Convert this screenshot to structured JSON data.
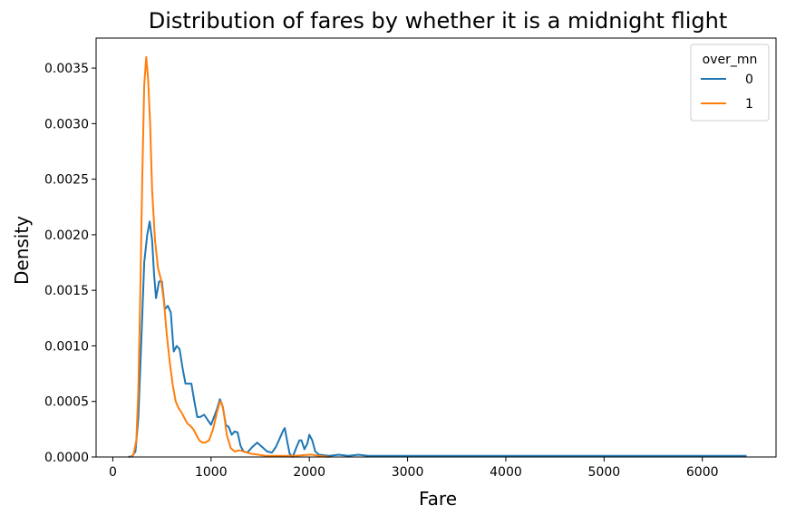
{
  "chart_data": {
    "type": "line",
    "title": "Distribution of fares by whether it is a midnight flight",
    "xlabel": "Fare",
    "ylabel": "Density",
    "xlim": [
      -170,
      6750
    ],
    "ylim": [
      0,
      0.00377
    ],
    "x_ticks": [
      0,
      1000,
      2000,
      3000,
      4000,
      5000,
      6000
    ],
    "x_tick_labels": [
      "0",
      "1000",
      "2000",
      "3000",
      "4000",
      "5000",
      "6000"
    ],
    "y_ticks": [
      0,
      0.0005,
      0.001,
      0.0015,
      0.002,
      0.0025,
      0.003,
      0.0035
    ],
    "y_tick_labels": [
      "0.0000",
      "0.0005",
      "0.0010",
      "0.0015",
      "0.0020",
      "0.0025",
      "0.0030",
      "0.0035"
    ],
    "grid": false,
    "legend": {
      "title": "over_mn",
      "position": "top-right"
    },
    "series": [
      {
        "name": "0",
        "color": "#1f77b4",
        "points": [
          [
            160,
            0.0
          ],
          [
            200,
            1e-05
          ],
          [
            230,
            5e-05
          ],
          [
            260,
            0.00035
          ],
          [
            290,
            0.00105
          ],
          [
            320,
            0.00175
          ],
          [
            350,
            0.002
          ],
          [
            375,
            0.00212
          ],
          [
            400,
            0.00195
          ],
          [
            420,
            0.00165
          ],
          [
            440,
            0.00143
          ],
          [
            470,
            0.00158
          ],
          [
            500,
            0.00158
          ],
          [
            530,
            0.00133
          ],
          [
            560,
            0.00136
          ],
          [
            590,
            0.0013
          ],
          [
            620,
            0.00095
          ],
          [
            650,
            0.001
          ],
          [
            680,
            0.00097
          ],
          [
            710,
            0.0008
          ],
          [
            740,
            0.00066
          ],
          [
            770,
            0.00066
          ],
          [
            800,
            0.00066
          ],
          [
            830,
            0.0005
          ],
          [
            860,
            0.00036
          ],
          [
            890,
            0.00036
          ],
          [
            930,
            0.00038
          ],
          [
            960,
            0.00034
          ],
          [
            1000,
            0.00029
          ],
          [
            1030,
            0.00036
          ],
          [
            1060,
            0.00043
          ],
          [
            1090,
            0.00052
          ],
          [
            1120,
            0.00045
          ],
          [
            1150,
            0.00029
          ],
          [
            1180,
            0.00027
          ],
          [
            1210,
            0.0002
          ],
          [
            1240,
            0.00023
          ],
          [
            1270,
            0.00022
          ],
          [
            1300,
            0.0001
          ],
          [
            1330,
            5e-05
          ],
          [
            1370,
            4e-05
          ],
          [
            1420,
            9e-05
          ],
          [
            1470,
            0.00013
          ],
          [
            1520,
            9e-05
          ],
          [
            1570,
            5e-05
          ],
          [
            1620,
            4e-05
          ],
          [
            1660,
            9e-05
          ],
          [
            1700,
            0.00017
          ],
          [
            1730,
            0.00023
          ],
          [
            1750,
            0.00026
          ],
          [
            1780,
            0.00012
          ],
          [
            1800,
            3e-05
          ],
          [
            1830,
            0.0
          ],
          [
            1870,
            9e-05
          ],
          [
            1900,
            0.00015
          ],
          [
            1920,
            0.00015
          ],
          [
            1950,
            7e-05
          ],
          [
            1980,
            0.00012
          ],
          [
            2000,
            0.0002
          ],
          [
            2030,
            0.00015
          ],
          [
            2060,
            5e-05
          ],
          [
            2100,
            2e-05
          ],
          [
            2200,
            1e-05
          ],
          [
            2300,
            2e-05
          ],
          [
            2400,
            1e-05
          ],
          [
            2500,
            2e-05
          ],
          [
            2600,
            1e-05
          ],
          [
            2700,
            1e-05
          ],
          [
            2800,
            1e-05
          ],
          [
            3000,
            1e-05
          ],
          [
            3300,
            1e-05
          ],
          [
            3500,
            1e-05
          ],
          [
            4000,
            1e-05
          ],
          [
            4300,
            1e-05
          ],
          [
            5000,
            1e-05
          ],
          [
            5500,
            1e-05
          ],
          [
            6000,
            1e-05
          ],
          [
            6450,
            1e-05
          ]
        ]
      },
      {
        "name": "1",
        "color": "#ff7f0e",
        "points": [
          [
            180,
            0.0
          ],
          [
            210,
            2e-05
          ],
          [
            240,
            0.00015
          ],
          [
            260,
            0.0006
          ],
          [
            280,
            0.0015
          ],
          [
            300,
            0.0025
          ],
          [
            320,
            0.00335
          ],
          [
            340,
            0.0036
          ],
          [
            360,
            0.0034
          ],
          [
            380,
            0.003
          ],
          [
            400,
            0.0024
          ],
          [
            430,
            0.00195
          ],
          [
            460,
            0.0017
          ],
          [
            490,
            0.0016
          ],
          [
            520,
            0.0014
          ],
          [
            550,
            0.0011
          ],
          [
            580,
            0.00085
          ],
          [
            610,
            0.00065
          ],
          [
            640,
            0.0005
          ],
          [
            670,
            0.00044
          ],
          [
            700,
            0.0004
          ],
          [
            730,
            0.00035
          ],
          [
            760,
            0.0003
          ],
          [
            790,
            0.00028
          ],
          [
            820,
            0.00025
          ],
          [
            850,
            0.0002
          ],
          [
            880,
            0.00015
          ],
          [
            910,
            0.00013
          ],
          [
            940,
            0.00013
          ],
          [
            980,
            0.00015
          ],
          [
            1020,
            0.00025
          ],
          [
            1060,
            0.0004
          ],
          [
            1090,
            0.0005
          ],
          [
            1110,
            0.00048
          ],
          [
            1130,
            0.0004
          ],
          [
            1160,
            0.0002
          ],
          [
            1200,
            8e-05
          ],
          [
            1240,
            5e-05
          ],
          [
            1290,
            6e-05
          ],
          [
            1330,
            5e-05
          ],
          [
            1400,
            3e-05
          ],
          [
            1480,
            2e-05
          ],
          [
            1560,
            1e-05
          ],
          [
            1650,
            1e-05
          ],
          [
            1750,
            1e-05
          ],
          [
            1850,
            1e-05
          ],
          [
            2000,
            2e-05
          ],
          [
            2030,
            2e-05
          ],
          [
            2100,
            1e-05
          ],
          [
            2200,
            0.0
          ]
        ]
      }
    ]
  }
}
